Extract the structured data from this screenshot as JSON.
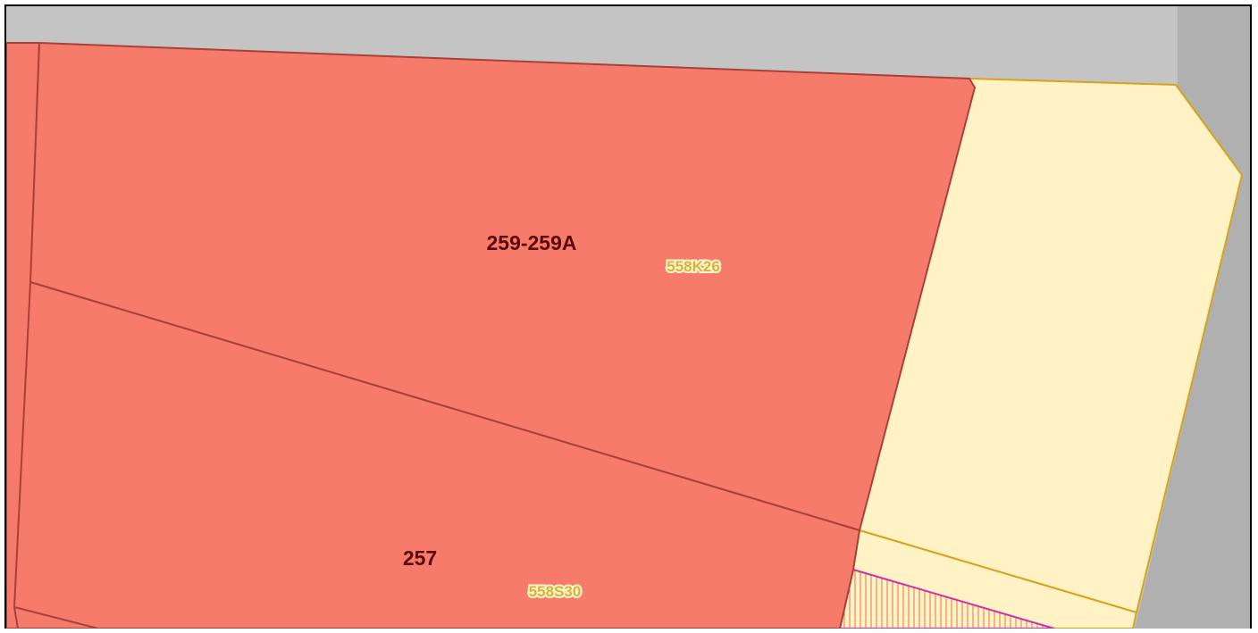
{
  "map": {
    "colors": {
      "street": "#c4c4c4",
      "street_right": "#b0b0b0",
      "parcel_red_fill": "#f77b6a",
      "parcel_red_edge": "#a8413c",
      "parcel_cream_fill": "#fff3c6",
      "parcel_cream_edge": "#d9a21a",
      "hatch_edge": "#d12fa7",
      "hatch_line": "#e0744e",
      "frame": "#000000"
    },
    "parcels": [
      {
        "number": "259-259A",
        "code": "558K26"
      },
      {
        "number": "257",
        "code": "558S30"
      }
    ]
  }
}
